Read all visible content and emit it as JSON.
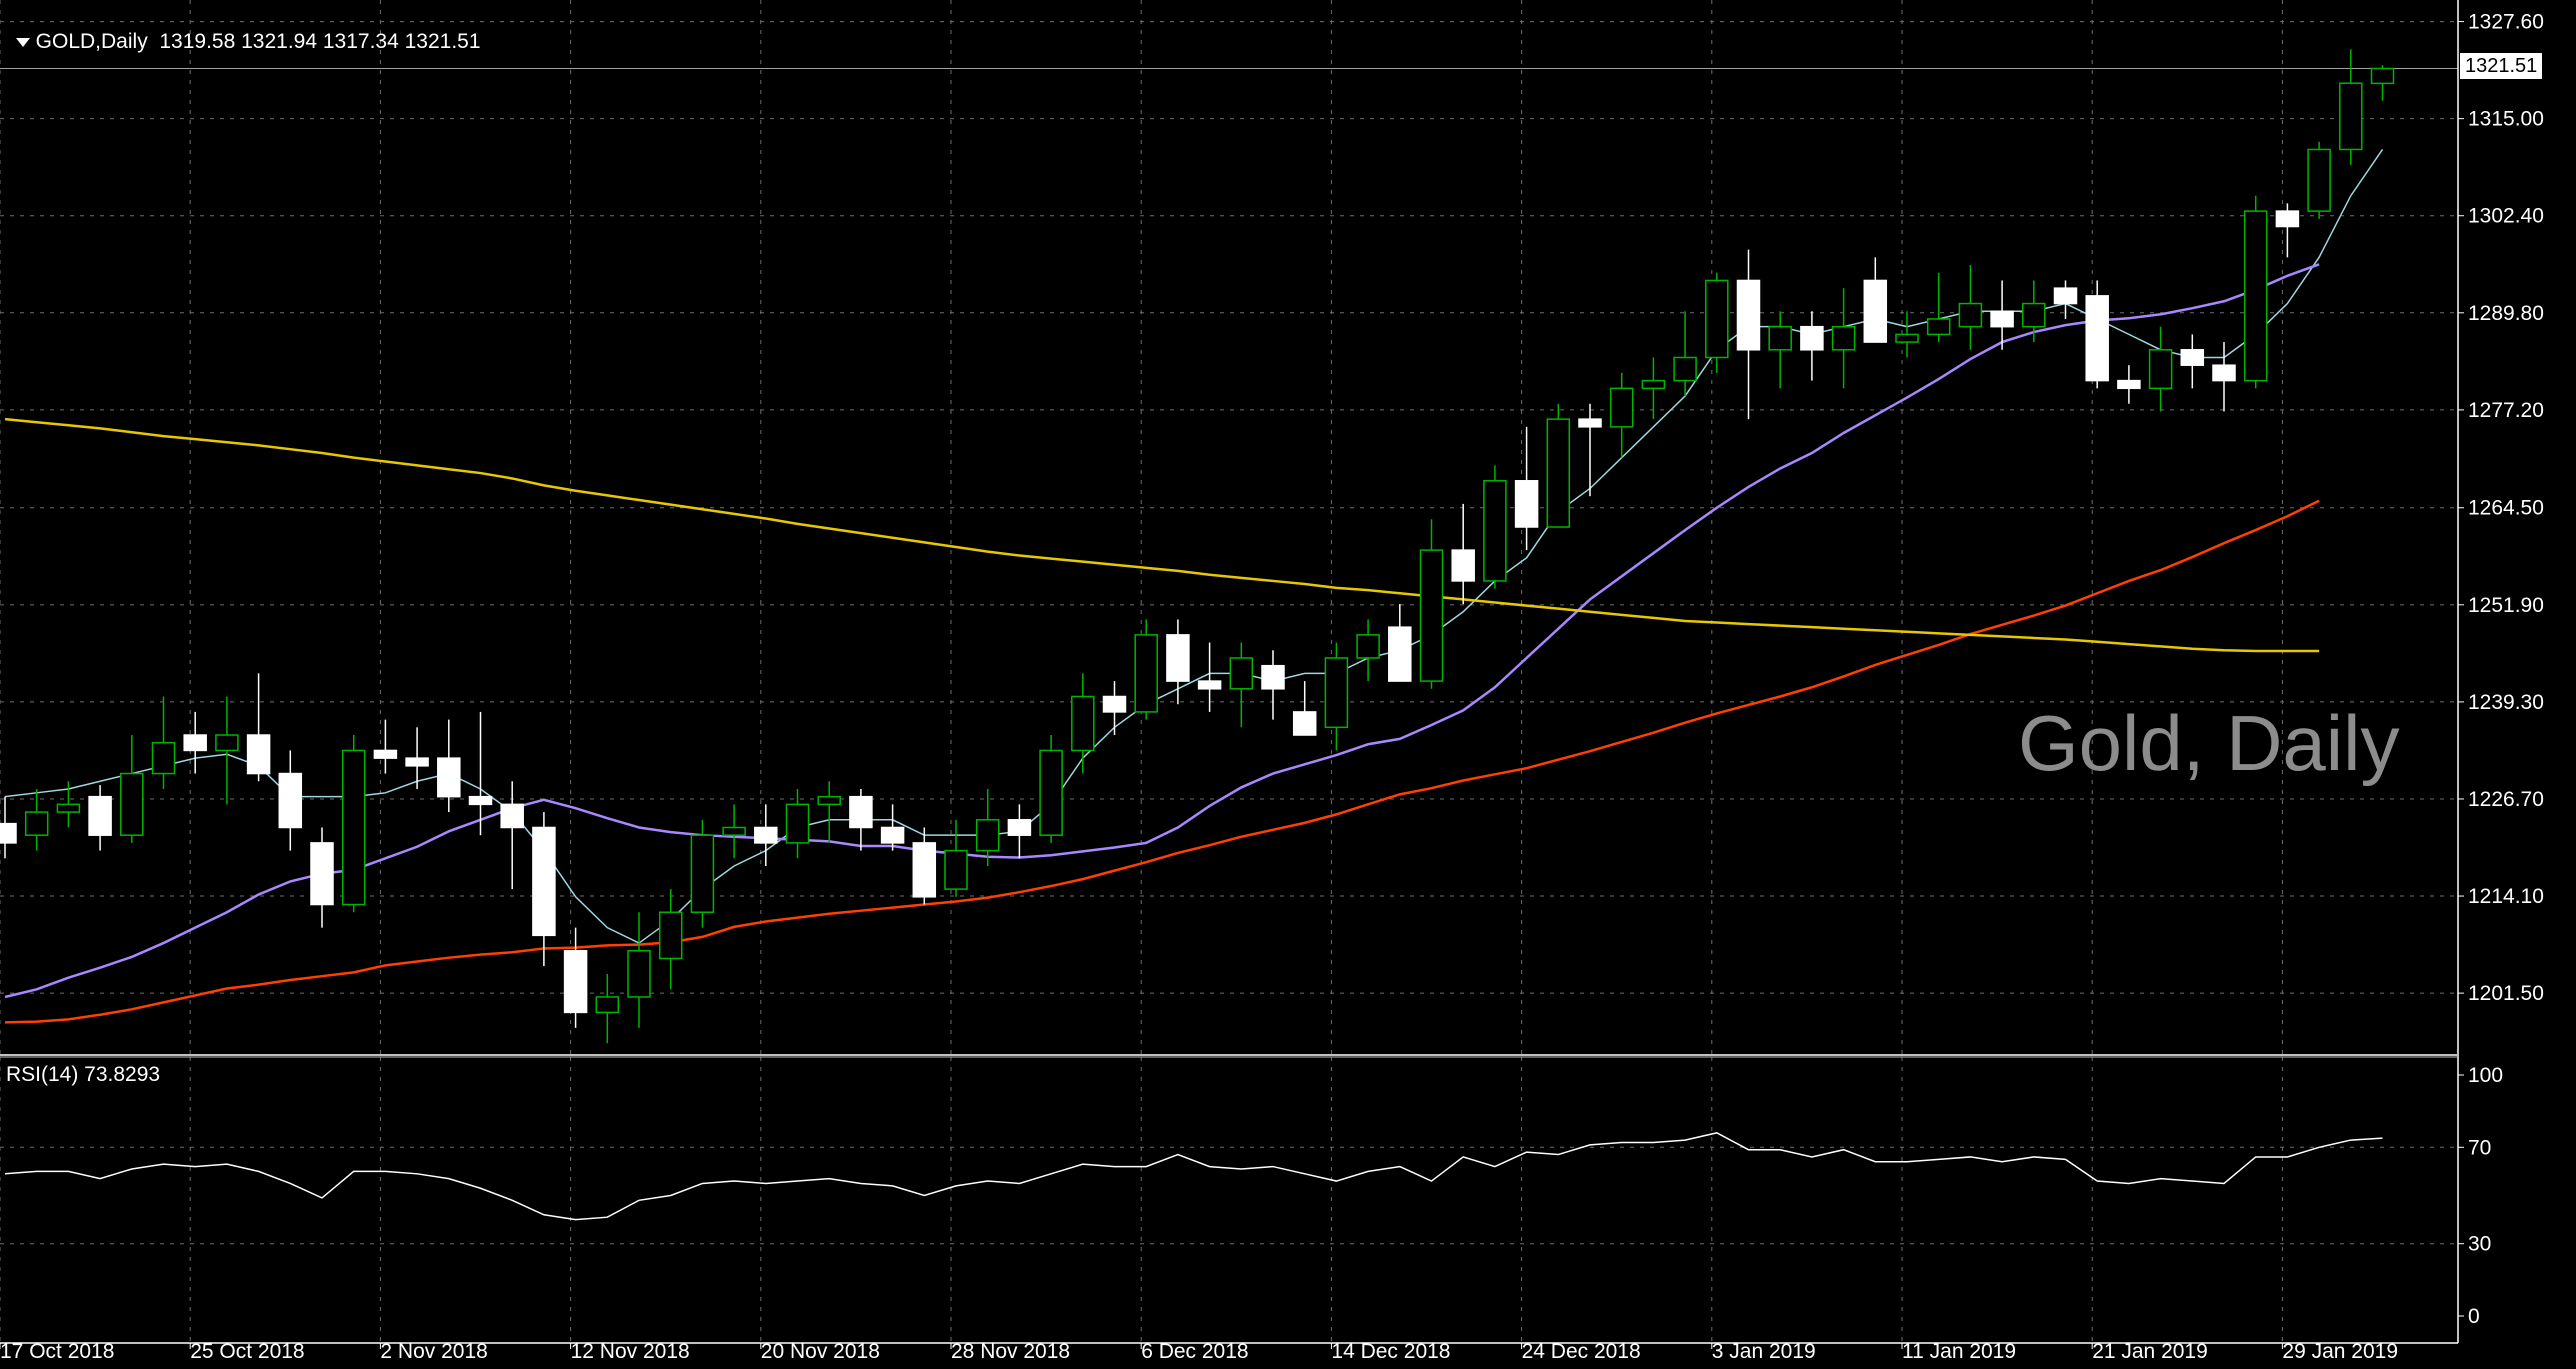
{
  "header": {
    "symbol_label": "GOLD,Daily",
    "ohlc": "1319.58 1321.94 1317.34 1321.51",
    "collapse_icon": "triangle-down-icon"
  },
  "watermark": "Gold, Daily",
  "current_price_tag": "1321.51",
  "rsi_label": "RSI(14) 73.8293",
  "colors": {
    "background": "#000000",
    "grid": "#6e6e6e",
    "bull_body": "#000000",
    "bull_outline": "#00b400",
    "bear_body": "#ffffff",
    "bear_outline": "#ffffff",
    "sma200": "#e6c800",
    "sma100": "#ff4000",
    "sma50": "#a888ff",
    "sma20": "#9ed8e0",
    "rsi_line": "#ffffff",
    "axis_text": "#ffffff"
  },
  "chart_data": {
    "type": "candlestick",
    "title": "GOLD,Daily",
    "ylim": [
      1193.6,
      1330.4
    ],
    "y_ticks": [
      "1327.60",
      "1315.00",
      "1302.40",
      "1289.80",
      "1277.20",
      "1264.50",
      "1251.90",
      "1239.30",
      "1226.70",
      "1214.10",
      "1201.50"
    ],
    "x_tick_labels": [
      {
        "index": 0,
        "label": "17 Oct 2018"
      },
      {
        "index": 6,
        "label": "25 Oct 2018"
      },
      {
        "index": 12,
        "label": "2 Nov 2018"
      },
      {
        "index": 18,
        "label": "12 Nov 2018"
      },
      {
        "index": 24,
        "label": "20 Nov 2018"
      },
      {
        "index": 30,
        "label": "28 Nov 2018"
      },
      {
        "index": 36,
        "label": "6 Dec 2018"
      },
      {
        "index": 42,
        "label": "14 Dec 2018"
      },
      {
        "index": 48,
        "label": "24 Dec 2018"
      },
      {
        "index": 54,
        "label": "3 Jan 2019"
      },
      {
        "index": 60,
        "label": "11 Jan 2019"
      },
      {
        "index": 66,
        "label": "21 Jan 2019"
      },
      {
        "index": 72,
        "label": "29 Jan 2019"
      }
    ],
    "candles": [
      [
        1223.5,
        1227.0,
        1219.0,
        1221.0
      ],
      [
        1222.0,
        1228.0,
        1220.0,
        1225.0
      ],
      [
        1225.0,
        1229.0,
        1223.0,
        1226.0
      ],
      [
        1227.0,
        1228.5,
        1220.0,
        1222.0
      ],
      [
        1222.0,
        1235.0,
        1221.0,
        1230.0
      ],
      [
        1230.0,
        1240.0,
        1228.0,
        1234.0
      ],
      [
        1235.0,
        1238.0,
        1230.0,
        1233.0
      ],
      [
        1233.0,
        1240.0,
        1226.0,
        1235.0
      ],
      [
        1235.0,
        1243.0,
        1229.0,
        1230.0
      ],
      [
        1230.0,
        1233.0,
        1220.0,
        1223.0
      ],
      [
        1221.0,
        1223.0,
        1210.0,
        1213.0
      ],
      [
        1213.0,
        1235.0,
        1212.0,
        1233.0
      ],
      [
        1233.0,
        1237.0,
        1230.0,
        1232.0
      ],
      [
        1232.0,
        1236.0,
        1228.0,
        1231.0
      ],
      [
        1232.0,
        1237.0,
        1225.0,
        1227.0
      ],
      [
        1227.0,
        1238.0,
        1222.0,
        1226.0
      ],
      [
        1226.0,
        1229.0,
        1215.0,
        1223.0
      ],
      [
        1223.0,
        1225.0,
        1205.0,
        1209.0
      ],
      [
        1207.0,
        1210.0,
        1197.0,
        1199.0
      ],
      [
        1199.0,
        1204.0,
        1195.0,
        1201.0
      ],
      [
        1201.0,
        1212.0,
        1197.0,
        1207.0
      ],
      [
        1206.0,
        1215.0,
        1202.0,
        1212.0
      ],
      [
        1212.0,
        1224.0,
        1210.0,
        1222.0
      ],
      [
        1222.0,
        1226.0,
        1219.0,
        1223.0
      ],
      [
        1223.0,
        1226.0,
        1218.0,
        1221.0
      ],
      [
        1221.0,
        1228.0,
        1219.0,
        1226.0
      ],
      [
        1226.0,
        1229.0,
        1221.0,
        1227.0
      ],
      [
        1227.0,
        1228.0,
        1220.0,
        1223.0
      ],
      [
        1223.0,
        1226.0,
        1220.0,
        1221.0
      ],
      [
        1221.0,
        1223.0,
        1213.0,
        1214.0
      ],
      [
        1215.0,
        1224.0,
        1214.0,
        1220.0
      ],
      [
        1220.0,
        1228.0,
        1218.0,
        1224.0
      ],
      [
        1224.0,
        1226.0,
        1219.0,
        1222.0
      ],
      [
        1222.0,
        1235.0,
        1221.0,
        1233.0
      ],
      [
        1233.0,
        1243.0,
        1230.0,
        1240.0
      ],
      [
        1240.0,
        1242.0,
        1235.0,
        1238.0
      ],
      [
        1238.0,
        1250.0,
        1237.0,
        1248.0
      ],
      [
        1248.0,
        1250.0,
        1239.0,
        1242.0
      ],
      [
        1242.0,
        1247.0,
        1238.0,
        1241.0
      ],
      [
        1241.0,
        1247.0,
        1236.0,
        1245.0
      ],
      [
        1244.0,
        1246.0,
        1237.0,
        1241.0
      ],
      [
        1238.0,
        1242.0,
        1235.0,
        1235.0
      ],
      [
        1236.0,
        1247.0,
        1233.0,
        1245.0
      ],
      [
        1245.0,
        1250.0,
        1242.0,
        1248.0
      ],
      [
        1249.0,
        1252.0,
        1242.0,
        1242.0
      ],
      [
        1242.0,
        1263.0,
        1241.0,
        1259.0
      ],
      [
        1259.0,
        1265.0,
        1252.0,
        1255.0
      ],
      [
        1255.0,
        1270.0,
        1254.0,
        1268.0
      ],
      [
        1268.0,
        1275.0,
        1259.0,
        1262.0
      ],
      [
        1262.0,
        1278.0,
        1262.0,
        1276.0
      ],
      [
        1276.0,
        1278.0,
        1266.0,
        1275.0
      ],
      [
        1275.0,
        1282.0,
        1271.0,
        1280.0
      ],
      [
        1280.0,
        1284.0,
        1276.0,
        1281.0
      ],
      [
        1281.0,
        1290.0,
        1279.0,
        1284.0
      ],
      [
        1284.0,
        1295.0,
        1282.0,
        1294.0
      ],
      [
        1294.0,
        1298.0,
        1276.0,
        1285.0
      ],
      [
        1285.0,
        1290.0,
        1280.0,
        1288.0
      ],
      [
        1288.0,
        1290.0,
        1281.0,
        1285.0
      ],
      [
        1285.0,
        1293.0,
        1280.0,
        1288.0
      ],
      [
        1294.0,
        1297.0,
        1287.0,
        1286.0
      ],
      [
        1286.0,
        1290.0,
        1284.0,
        1287.0
      ],
      [
        1287.0,
        1295.0,
        1286.0,
        1289.0
      ],
      [
        1288.0,
        1296.0,
        1285.0,
        1291.0
      ],
      [
        1290.0,
        1294.0,
        1285.0,
        1288.0
      ],
      [
        1288.0,
        1294.0,
        1286.0,
        1291.0
      ],
      [
        1293.0,
        1294.0,
        1289.0,
        1291.0
      ],
      [
        1292.0,
        1294.0,
        1280.0,
        1281.0
      ],
      [
        1281.0,
        1283.0,
        1278.0,
        1280.0
      ],
      [
        1280.0,
        1288.0,
        1277.0,
        1285.0
      ],
      [
        1285.0,
        1287.0,
        1280.0,
        1283.0
      ],
      [
        1283.0,
        1286.0,
        1277.0,
        1281.0
      ],
      [
        1281.0,
        1305.0,
        1280.0,
        1303.0
      ],
      [
        1303.0,
        1304.0,
        1297.0,
        1301.0
      ],
      [
        1303.0,
        1312.0,
        1302.0,
        1311.0
      ],
      [
        1311.0,
        1324.0,
        1309.0,
        1319.6
      ],
      [
        1319.58,
        1321.94,
        1317.34,
        1321.51
      ]
    ],
    "series": [
      {
        "period": 20,
        "color": "#9ed8e0",
        "values": [
          1227.0,
          1227.5,
          1228.0,
          1229.0,
          1230.0,
          1231.0,
          1232.0,
          1232.5,
          1231.0,
          1227.0,
          1227.0,
          1227.0,
          1227.5,
          1229.0,
          1230.0,
          1228.0,
          1225.0,
          1220.0,
          1214.0,
          1210.0,
          1208.0,
          1211.0,
          1215.0,
          1218.0,
          1220.0,
          1223.0,
          1224.0,
          1224.0,
          1224.0,
          1222.0,
          1222.0,
          1222.0,
          1222.5,
          1226.0,
          1232.0,
          1236.0,
          1239.0,
          1241.0,
          1243.0,
          1243.0,
          1242.0,
          1243.0,
          1243.0,
          1245.0,
          1246.0,
          1248.0,
          1251.0,
          1255.0,
          1258.0,
          1264.0,
          1267.0,
          1271.0,
          1275.0,
          1279.0,
          1285.0,
          1288.0,
          1288.0,
          1287.0,
          1288.0,
          1289.0,
          1288.0,
          1289.0,
          1290.0,
          1290.0,
          1290.0,
          1291.0,
          1289.0,
          1287.0,
          1285.0,
          1284.0,
          1284.0,
          1287.0,
          1291.0,
          1297.0,
          1305.0,
          1311.0
        ]
      },
      {
        "period": 50,
        "color": "#a888ff",
        "values": [
          1201.0,
          1202.0,
          1203.5,
          1204.8,
          1206.2,
          1208.0,
          1210.0,
          1212.0,
          1214.3,
          1216.0,
          1217.0,
          1217.5,
          1219.0,
          1220.5,
          1222.5,
          1224.0,
          1225.5,
          1226.6,
          1225.5,
          1224.2,
          1223.0,
          1222.4,
          1222.0,
          1221.8,
          1221.6,
          1221.4,
          1221.2,
          1220.6,
          1220.6,
          1220.0,
          1219.6,
          1219.2,
          1219.1,
          1219.4,
          1219.9,
          1220.4,
          1221.0,
          1223.0,
          1225.8,
          1228.2,
          1230.0,
          1231.2,
          1232.4,
          1233.8,
          1234.5,
          1236.3,
          1238.2,
          1241.2,
          1245.0,
          1248.8,
          1252.6,
          1255.6,
          1258.6,
          1261.6,
          1264.5,
          1267.2,
          1269.6,
          1271.6,
          1274.2,
          1276.5,
          1278.8,
          1281.2,
          1283.8,
          1286.0,
          1287.3,
          1288.2,
          1288.8,
          1289.1,
          1289.6,
          1290.4,
          1291.3,
          1292.8,
          1294.6,
          1296.1
        ]
      },
      {
        "period": 100,
        "color": "#ff4000",
        "values": [
          1197.7,
          1197.8,
          1198.1,
          1198.7,
          1199.4,
          1200.3,
          1201.2,
          1202.1,
          1202.6,
          1203.2,
          1203.7,
          1204.2,
          1205.1,
          1205.6,
          1206.1,
          1206.5,
          1206.8,
          1207.3,
          1207.4,
          1207.7,
          1207.8,
          1208.1,
          1208.8,
          1210.1,
          1210.8,
          1211.3,
          1211.8,
          1212.2,
          1212.6,
          1213.0,
          1213.4,
          1213.9,
          1214.6,
          1215.4,
          1216.3,
          1217.4,
          1218.5,
          1219.7,
          1220.7,
          1221.8,
          1222.7,
          1223.6,
          1224.7,
          1226.0,
          1227.3,
          1228.1,
          1229.1,
          1229.9,
          1230.7,
          1231.8,
          1232.9,
          1234.1,
          1235.3,
          1236.6,
          1237.8,
          1238.9,
          1240.0,
          1241.2,
          1242.6,
          1244.1,
          1245.4,
          1246.7,
          1248.1,
          1249.3,
          1250.5,
          1251.8,
          1253.4,
          1255.0,
          1256.4,
          1258.1,
          1259.9,
          1261.6,
          1263.4,
          1265.4
        ]
      },
      {
        "period": 200,
        "color": "#e6c800",
        "values": [
          1276.0,
          1275.6,
          1275.2,
          1274.8,
          1274.3,
          1273.8,
          1273.4,
          1273.0,
          1272.6,
          1272.1,
          1271.6,
          1271.0,
          1270.5,
          1270.0,
          1269.5,
          1269.0,
          1268.3,
          1267.4,
          1266.7,
          1266.1,
          1265.5,
          1264.9,
          1264.3,
          1263.7,
          1263.1,
          1262.4,
          1261.8,
          1261.2,
          1260.6,
          1260.0,
          1259.4,
          1258.8,
          1258.3,
          1257.9,
          1257.5,
          1257.1,
          1256.7,
          1256.3,
          1255.8,
          1255.4,
          1255.0,
          1254.6,
          1254.1,
          1253.8,
          1253.4,
          1253.0,
          1252.6,
          1252.2,
          1251.8,
          1251.4,
          1251.0,
          1250.6,
          1250.2,
          1249.8,
          1249.6,
          1249.4,
          1249.2,
          1249.0,
          1248.8,
          1248.6,
          1248.4,
          1248.2,
          1248.0,
          1247.8,
          1247.6,
          1247.4,
          1247.1,
          1246.8,
          1246.5,
          1246.2,
          1246.0,
          1245.9,
          1245.9,
          1245.9
        ]
      }
    ],
    "rsi": {
      "period": 14,
      "ylim": [
        0,
        100
      ],
      "y_ticks": [
        "100",
        "70",
        "30",
        "0"
      ],
      "values": [
        59,
        60,
        60,
        57,
        61,
        63,
        62,
        63,
        60,
        55,
        49,
        60,
        60,
        59,
        57,
        53,
        48,
        42,
        40,
        41,
        48,
        50,
        55,
        56,
        55,
        56,
        57,
        55,
        54,
        50,
        54,
        56,
        55,
        59,
        63,
        62,
        62,
        67,
        62,
        61,
        62,
        59,
        56,
        60,
        62,
        56,
        66,
        62,
        68,
        67,
        71,
        72,
        72,
        73,
        76,
        69,
        69,
        66,
        69,
        64,
        64,
        65,
        66,
        64,
        66,
        65,
        56,
        55,
        57,
        56,
        55,
        66,
        66,
        70,
        73,
        73.8
      ]
    }
  }
}
